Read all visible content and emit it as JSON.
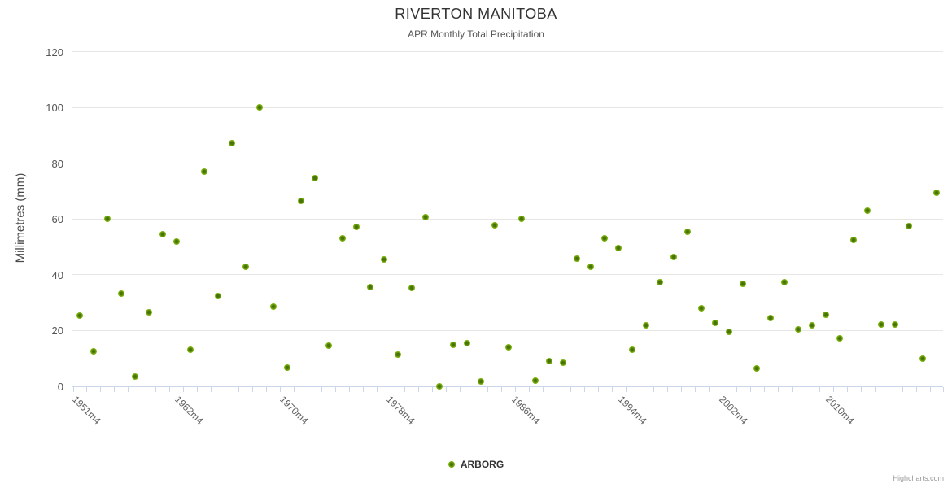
{
  "chart_data": {
    "type": "scatter",
    "title": "RIVERTON MANITOBA",
    "subtitle": "APR Monthly Total Precipitation",
    "xlabel": "",
    "ylabel": "Millimetres (mm)",
    "ylim": [
      0,
      120
    ],
    "y_ticks": [
      0,
      20,
      40,
      60,
      80,
      100,
      120
    ],
    "grid": "horizontal-only",
    "legend_position": "bottom-center",
    "marker_shape": "circle",
    "n_points": 63,
    "x_tick_labels": [
      {
        "label": "1951m4",
        "at_point": 0
      },
      {
        "label": "1962m4",
        "at_point": 7.4
      },
      {
        "label": "1970m4",
        "at_point": 15
      },
      {
        "label": "1978m4",
        "at_point": 22.7
      },
      {
        "label": "1986m4",
        "at_point": 31.8
      },
      {
        "label": "1994m4",
        "at_point": 39.5
      },
      {
        "label": "2002m4",
        "at_point": 46.8
      },
      {
        "label": "2010m4",
        "at_point": 54.5
      }
    ],
    "series": [
      {
        "name": "ARBORG",
        "color": "#7fb40f",
        "values": [
          25.4,
          12.5,
          60.0,
          33.2,
          3.3,
          26.3,
          54.4,
          51.7,
          13.0,
          76.8,
          32.3,
          87.2,
          42.7,
          100.0,
          28.5,
          6.6,
          66.5,
          74.6,
          14.5,
          52.9,
          57.0,
          35.4,
          45.3,
          11.2,
          35.2,
          60.6,
          0.0,
          14.7,
          15.2,
          1.5,
          57.6,
          14.0,
          60.0,
          2.0,
          8.8,
          8.3,
          45.6,
          42.9,
          53.1,
          49.5,
          12.9,
          21.8,
          37.2,
          46.3,
          55.3,
          27.9,
          22.6,
          19.5,
          36.6,
          6.2,
          24.4,
          37.3,
          20.3,
          21.8,
          25.6,
          17.1,
          52.4,
          62.9,
          22.0,
          22.0,
          57.3,
          9.8,
          69.3
        ]
      }
    ]
  },
  "credits": {
    "label": "Highcharts.com"
  }
}
